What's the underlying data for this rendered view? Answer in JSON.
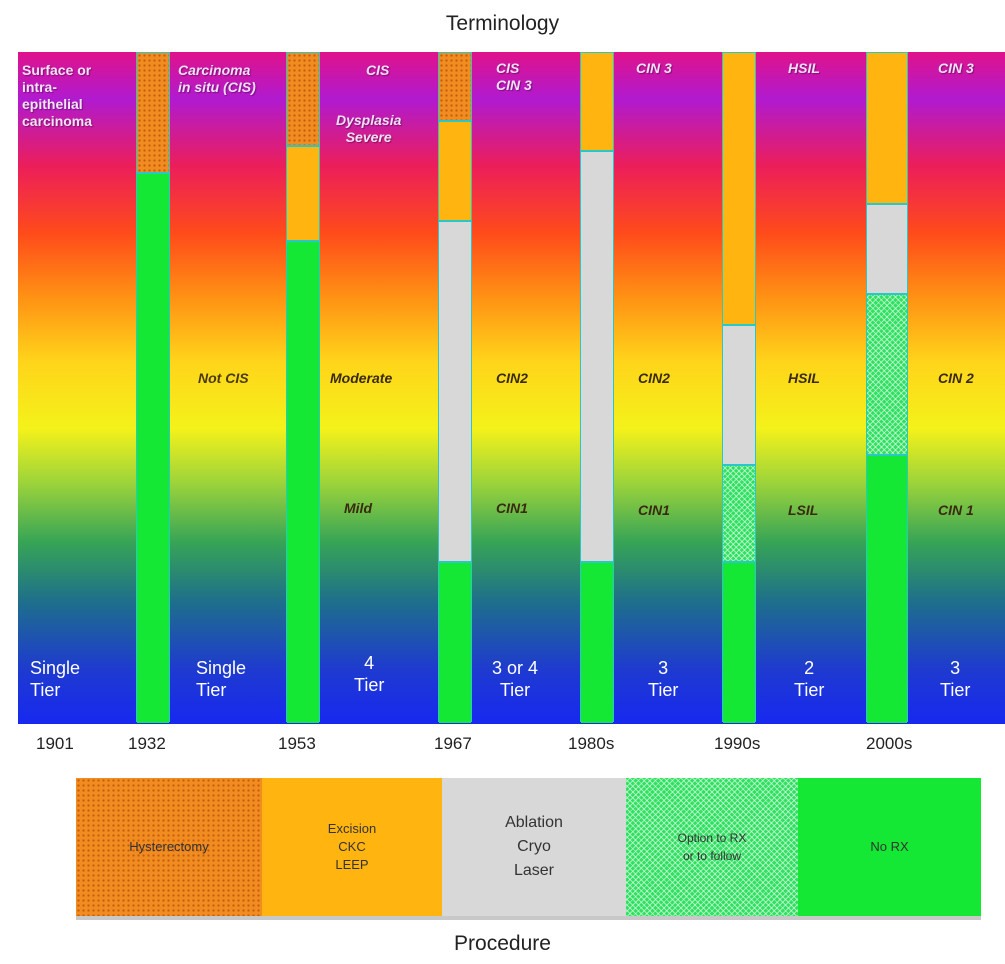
{
  "title": "Terminology",
  "footer": "Procedure",
  "columns": [
    {
      "top": "Surface or\nintra-\nepithelial\ncarcinoma",
      "tier": "Single\nTier"
    },
    {
      "top": "Carcinoma\nin situ (CIS)",
      "mid": "Not CIS",
      "tier": "Single\nTier"
    },
    {
      "top": "CIS",
      "top2": "Dysplasia\nSevere",
      "mid": "Moderate",
      "low": "Mild",
      "tier": "4\nTier"
    },
    {
      "top": "CIS\nCIN 3",
      "mid": "CIN2",
      "low": "CIN1",
      "tier": "3 or 4\nTier"
    },
    {
      "top": "CIN 3",
      "mid": "CIN2",
      "low": "CIN1",
      "tier": "3\nTier"
    },
    {
      "top": "HSIL",
      "mid": "HSIL",
      "low": "LSIL",
      "tier": "2\nTier"
    },
    {
      "top": "CIN 3",
      "mid": "CIN 2",
      "low": "CIN 1",
      "tier": "3\nTier"
    }
  ],
  "years": [
    "1901",
    "1932",
    "1953",
    "1967",
    "1980s",
    "1990s",
    "2000s"
  ],
  "pillars": [
    {
      "year": "1932",
      "segments": [
        {
          "type": "hysterectomy",
          "from": 0,
          "to": 0.178
        },
        {
          "type": "no-rx",
          "from": 0.178,
          "to": 1
        }
      ]
    },
    {
      "year": "1953",
      "segments": [
        {
          "type": "hysterectomy",
          "from": 0,
          "to": 0.137
        },
        {
          "type": "excision",
          "from": 0.137,
          "to": 0.28
        },
        {
          "type": "no-rx",
          "from": 0.28,
          "to": 1
        }
      ]
    },
    {
      "year": "1967",
      "segments": [
        {
          "type": "hysterectomy",
          "from": 0,
          "to": 0.1
        },
        {
          "type": "excision",
          "from": 0.1,
          "to": 0.25
        },
        {
          "type": "ablation",
          "from": 0.25,
          "to": 0.76
        },
        {
          "type": "no-rx",
          "from": 0.76,
          "to": 1
        }
      ]
    },
    {
      "year": "1980s",
      "segments": [
        {
          "type": "excision",
          "from": 0,
          "to": 0.145
        },
        {
          "type": "ablation",
          "from": 0.145,
          "to": 0.76
        },
        {
          "type": "no-rx",
          "from": 0.76,
          "to": 1
        }
      ]
    },
    {
      "year": "1990s",
      "segments": [
        {
          "type": "excision",
          "from": 0,
          "to": 0.405
        },
        {
          "type": "ablation",
          "from": 0.405,
          "to": 0.615
        },
        {
          "type": "option",
          "from": 0.615,
          "to": 0.76
        },
        {
          "type": "no-rx",
          "from": 0.76,
          "to": 1
        }
      ]
    },
    {
      "year": "2000s",
      "segments": [
        {
          "type": "excision",
          "from": 0,
          "to": 0.225
        },
        {
          "type": "ablation",
          "from": 0.225,
          "to": 0.36
        },
        {
          "type": "option",
          "from": 0.36,
          "to": 0.6
        },
        {
          "type": "no-rx",
          "from": 0.6,
          "to": 1
        }
      ]
    }
  ],
  "legend": [
    {
      "type": "hysterectomy",
      "label": "Hysterectomy"
    },
    {
      "type": "excision",
      "label": "Excision\nCKC\nLEEP"
    },
    {
      "type": "ablation",
      "label": "Ablation\nCryo\nLaser"
    },
    {
      "type": "option",
      "label": "Option to RX\nor to follow"
    },
    {
      "type": "no-rx",
      "label": "No RX"
    }
  ]
}
